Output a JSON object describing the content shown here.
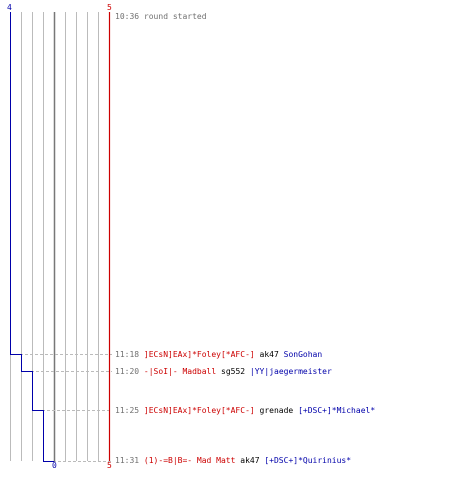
{
  "scores": {
    "blue_start": "4",
    "red_start": "5",
    "blue_end": "0",
    "red_end": "5"
  },
  "colors": {
    "blue": "#0000aa",
    "red": "#cc0000",
    "grid": "#bbbbbb",
    "center": "#777777",
    "time": "#707070"
  },
  "events": [
    {
      "time": "10:36",
      "text": "round started"
    },
    {
      "time": "11:18",
      "killer": "]ECsN]EAx]*Foley[*AFC-]",
      "weapon": "ak47",
      "victim": "SonGohan"
    },
    {
      "time": "11:20",
      "killer": "-|SoI|- Madball",
      "weapon": "sg552",
      "victim": "|YY|jaegermeister"
    },
    {
      "time": "11:25",
      "killer": "]ECsN]EAx]*Foley[*AFC-]",
      "weapon": "grenade",
      "victim": "[+DSC+]*Michael*"
    },
    {
      "time": "11:31",
      "killer": "(1)-=B|B=- Mad Matt",
      "weapon": "ak47",
      "victim": "[+DSC+]*Quirinius*"
    }
  ]
}
